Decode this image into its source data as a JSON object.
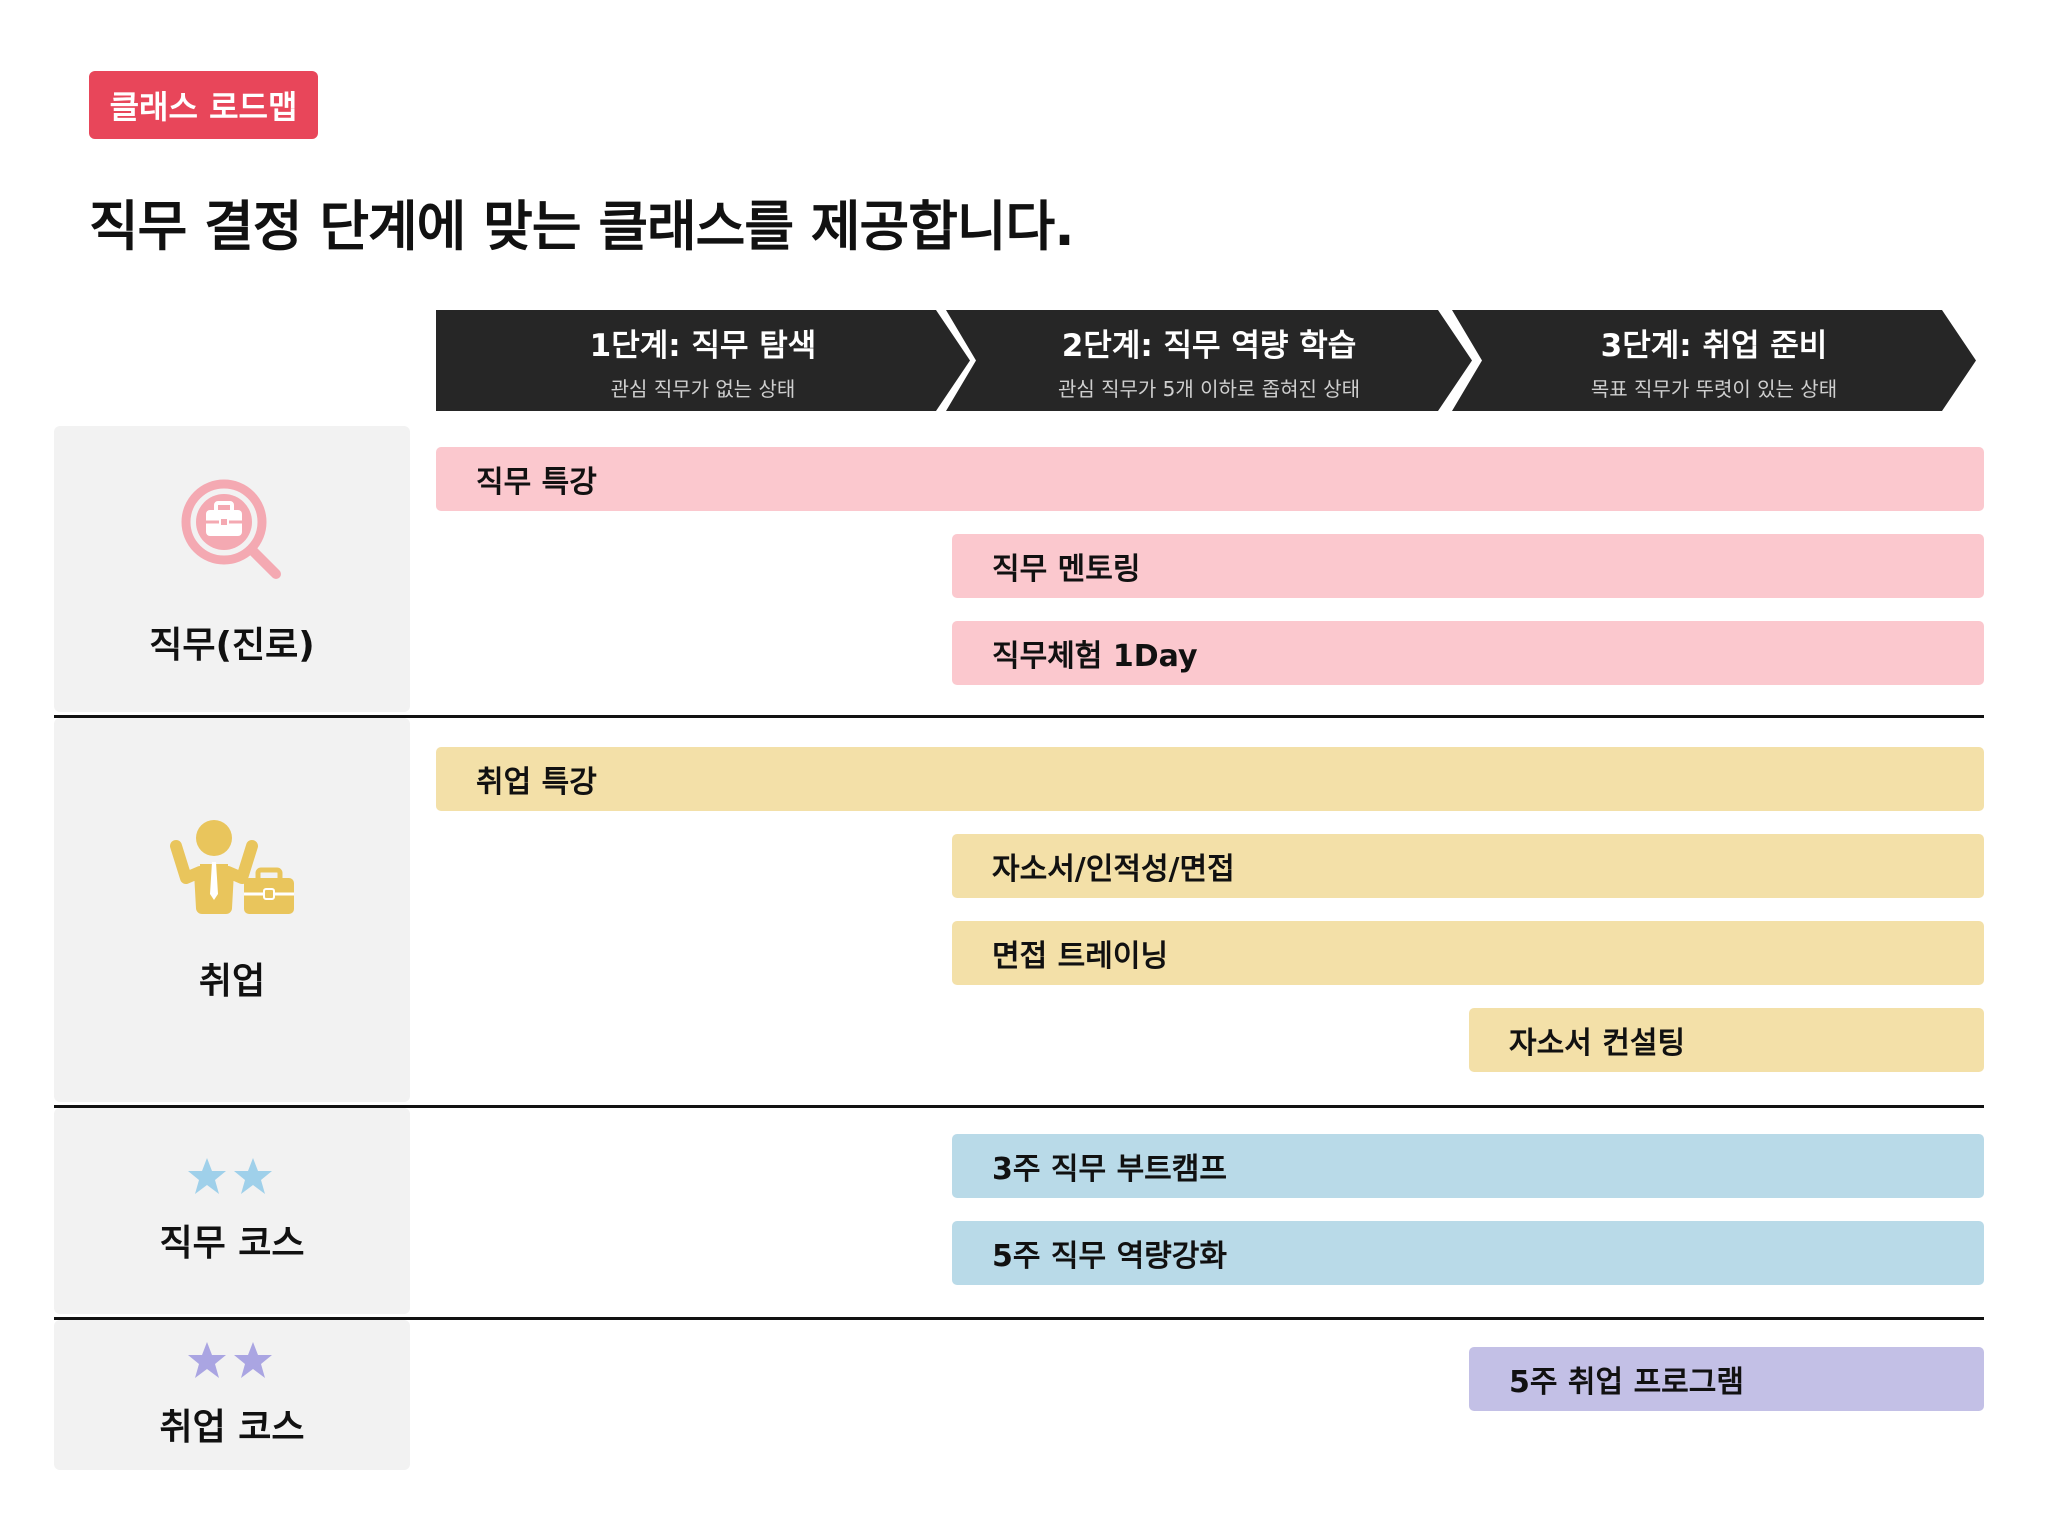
{
  "badge": "클래스 로드맵",
  "headline": "직무 결정 단계에 맞는 클래스를 제공합니다.",
  "stages": [
    {
      "title": "1단계: 직무 탐색",
      "subtitle": "관심 직무가 없는 상태"
    },
    {
      "title": "2단계: 직무 역량 학습",
      "subtitle": "관심 직무가 5개 이하로 좁혀진 상태"
    },
    {
      "title": "3단계: 취업 준비",
      "subtitle": "목표 직무가 뚜렷이 있는 상태"
    }
  ],
  "categories": [
    {
      "label": "직무(진로)",
      "icon": "job-search-icon",
      "color": "#f4a9b2"
    },
    {
      "label": "취업",
      "icon": "employee-briefcase-icon",
      "color": "#e9c55c"
    },
    {
      "label": "직무 코스",
      "icon": "stars-icon",
      "color": "#9fd0ea"
    },
    {
      "label": "취업 코스",
      "icon": "stars-icon",
      "color": "#aaa5e2"
    }
  ],
  "classes": {
    "job_lecture": "직무 특강",
    "job_mentoring": "직무 멘토링",
    "job_experience": "직무체험 1Day",
    "employment_lecture": "취업 특강",
    "resume_aptitude_interview": "자소서/인적성/면접",
    "interview_training": "면접 트레이닝",
    "resume_consulting": "자소서 컨설팅",
    "job_bootcamp": "3주 직무 부트캠프",
    "job_competency": "5주 직무 역량강화",
    "employment_program": "5주 취업 프로그램"
  },
  "colors": {
    "badge": "#e8465a",
    "stage_bg": "#262626",
    "job": "#fbc8ce",
    "employment": "#f3e0a8",
    "job_course": "#b9dae8",
    "employment_course": "#c3c0e6"
  }
}
